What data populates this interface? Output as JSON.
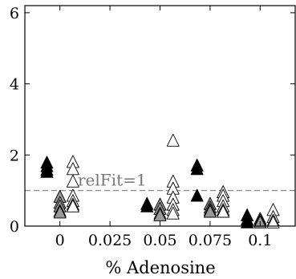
{
  "chart_data": {
    "type": "scatter",
    "title": "",
    "xlabel": "% Adenosine",
    "ylabel": "",
    "xlim": [
      -0.0175,
      0.1175
    ],
    "ylim": [
      0,
      6.2
    ],
    "x_ticks": [
      0,
      0.025,
      0.05,
      0.075,
      0.1
    ],
    "x_tick_labels": [
      "0",
      "0.025",
      "0.05",
      "0.075",
      "0.1"
    ],
    "y_ticks": [
      0,
      2,
      4,
      6
    ],
    "y_tick_labels": [
      "0",
      "2",
      "4",
      "6"
    ],
    "grid": false,
    "legend": "none",
    "reference_line": {
      "y": 1,
      "label": "relFit=1",
      "style": "dashed",
      "color": "#888888"
    },
    "marker": "triangle",
    "series": [
      {
        "color": "#000000",
        "offset": -0.0065,
        "points": [
          {
            "x": 0,
            "y": 1.78
          },
          {
            "x": 0,
            "y": 1.68
          },
          {
            "x": 0,
            "y": 1.58
          },
          {
            "x": 0,
            "y": 1.52
          },
          {
            "x": 0.05,
            "y": 0.62
          },
          {
            "x": 0.05,
            "y": 0.55
          },
          {
            "x": 0.075,
            "y": 1.7
          },
          {
            "x": 0.075,
            "y": 1.6
          },
          {
            "x": 0.075,
            "y": 0.85
          },
          {
            "x": 0.1,
            "y": 0.3
          },
          {
            "x": 0.1,
            "y": 0.18
          },
          {
            "x": 0.1,
            "y": 0.1
          }
        ]
      },
      {
        "color": "#999999",
        "offset": 0,
        "points": [
          {
            "x": 0,
            "y": 0.82
          },
          {
            "x": 0,
            "y": 0.65
          },
          {
            "x": 0,
            "y": 0.55
          },
          {
            "x": 0,
            "y": 0.42
          },
          {
            "x": 0,
            "y": 0.38
          },
          {
            "x": 0.05,
            "y": 0.6
          },
          {
            "x": 0.05,
            "y": 0.48
          },
          {
            "x": 0.05,
            "y": 0.35
          },
          {
            "x": 0.05,
            "y": 0.3
          },
          {
            "x": 0.075,
            "y": 0.62
          },
          {
            "x": 0.075,
            "y": 0.52
          },
          {
            "x": 0.075,
            "y": 0.45
          },
          {
            "x": 0.075,
            "y": 0.4
          },
          {
            "x": 0.1,
            "y": 0.2
          },
          {
            "x": 0.1,
            "y": 0.15
          },
          {
            "x": 0.1,
            "y": 0.1
          }
        ]
      },
      {
        "color": "#ffffff",
        "offset": 0.0065,
        "points": [
          {
            "x": 0,
            "y": 1.8
          },
          {
            "x": 0,
            "y": 1.6
          },
          {
            "x": 0,
            "y": 1.25
          },
          {
            "x": 0,
            "y": 0.85
          },
          {
            "x": 0,
            "y": 0.7
          },
          {
            "x": 0,
            "y": 0.6
          },
          {
            "x": 0,
            "y": 0.55
          },
          {
            "x": 0.05,
            "y": 2.4
          },
          {
            "x": 0.05,
            "y": 1.25
          },
          {
            "x": 0.05,
            "y": 1.05
          },
          {
            "x": 0.05,
            "y": 0.8
          },
          {
            "x": 0.05,
            "y": 0.6
          },
          {
            "x": 0.05,
            "y": 0.45
          },
          {
            "x": 0.05,
            "y": 0.35
          },
          {
            "x": 0.075,
            "y": 0.95
          },
          {
            "x": 0.075,
            "y": 0.85
          },
          {
            "x": 0.075,
            "y": 0.7
          },
          {
            "x": 0.075,
            "y": 0.55
          },
          {
            "x": 0.075,
            "y": 0.45
          },
          {
            "x": 0.075,
            "y": 0.4
          },
          {
            "x": 0.1,
            "y": 0.45
          },
          {
            "x": 0.1,
            "y": 0.25
          },
          {
            "x": 0.1,
            "y": 0.15
          },
          {
            "x": 0.1,
            "y": 0.1
          }
        ]
      }
    ]
  }
}
